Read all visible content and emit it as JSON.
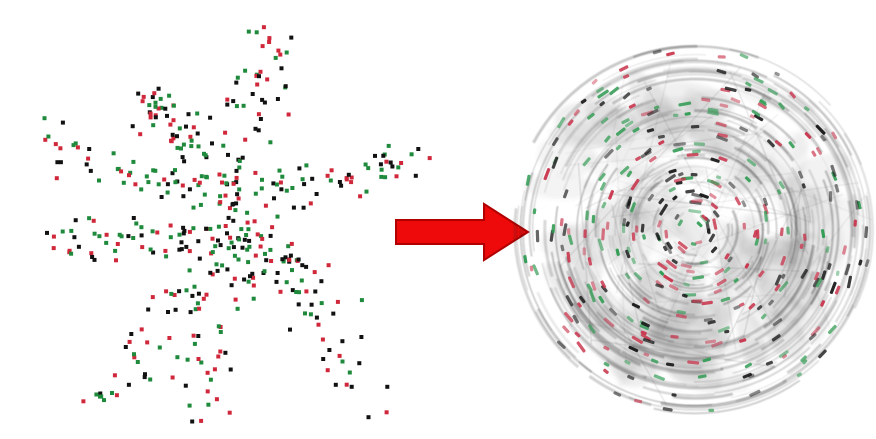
{
  "figure": {
    "left_panel": {
      "description_role": "scattered-points",
      "point_colors": {
        "black": "#111111",
        "red": "#d0283a",
        "green": "#1f8a3c"
      }
    },
    "arrow": {
      "color": "#ee0a0a",
      "outline": "#b00000",
      "direction": "right"
    },
    "right_panel": {
      "description_role": "motion-blurred-cluster",
      "stroke_color": "#222222",
      "dash_colors": {
        "black": "#151515",
        "red": "#c8324a",
        "green": "#2d9a50"
      }
    }
  }
}
